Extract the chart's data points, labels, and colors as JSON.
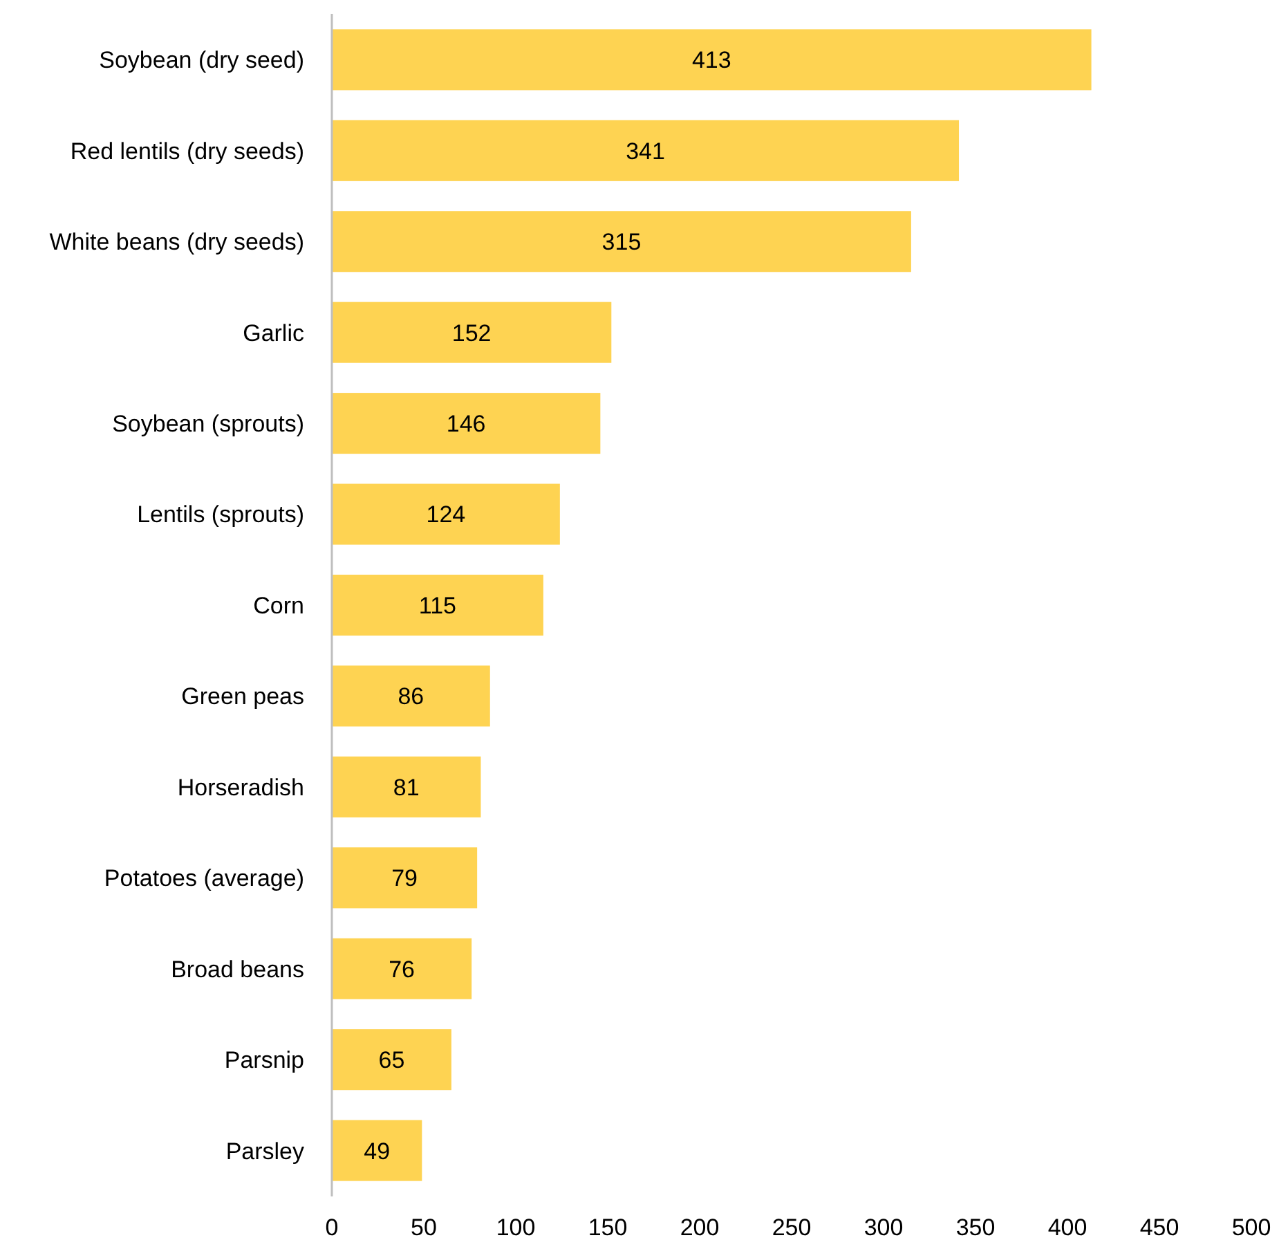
{
  "chart_data": {
    "type": "bar",
    "orientation": "horizontal",
    "categories": [
      "Soybean (dry seed)",
      "Red lentils (dry seeds)",
      "White beans (dry seeds)",
      "Garlic",
      "Soybean (sprouts)",
      "Lentils (sprouts)",
      "Corn",
      "Green peas",
      "Horseradish",
      "Potatoes (average)",
      "Broad beans",
      "Parsnip",
      "Parsley"
    ],
    "values": [
      413,
      341,
      315,
      152,
      146,
      124,
      115,
      86,
      81,
      79,
      76,
      65,
      49
    ],
    "color": "#fed352",
    "xlim": [
      0,
      500
    ],
    "xticks": [
      0,
      50,
      100,
      150,
      200,
      250,
      300,
      350,
      400,
      450,
      500
    ],
    "data_labels": true
  }
}
